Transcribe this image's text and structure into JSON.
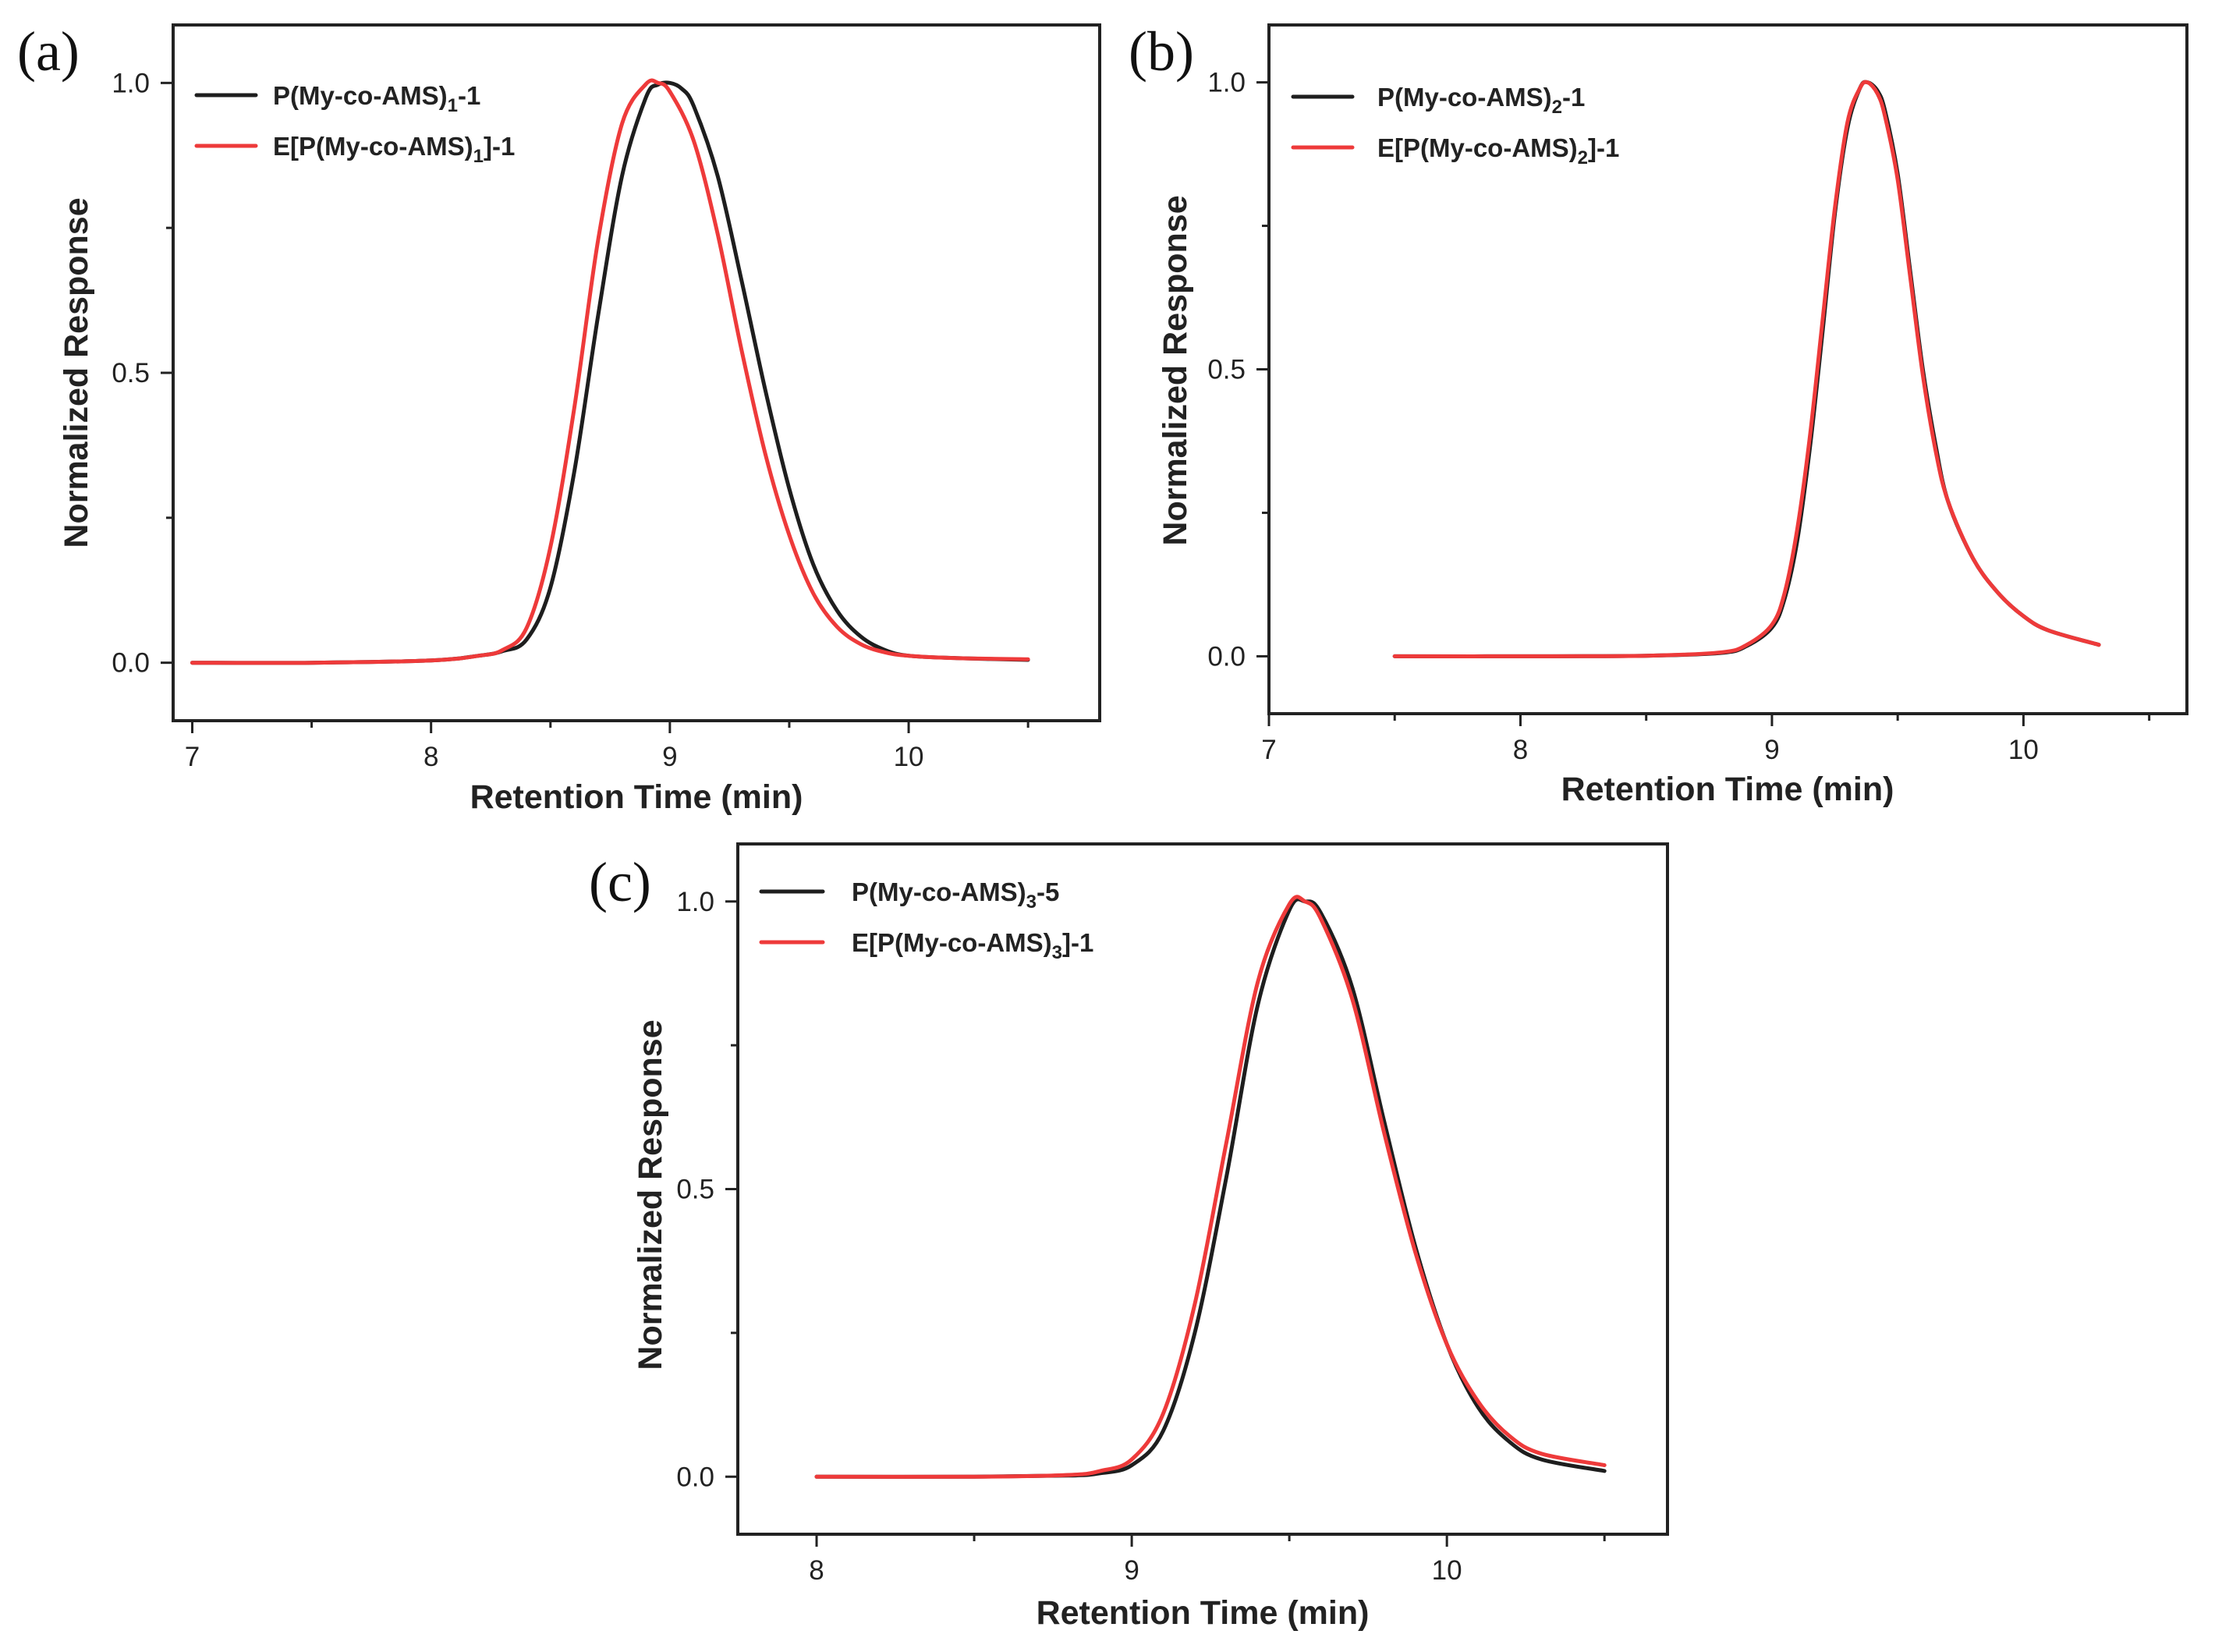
{
  "figure": {
    "panels": [
      "(a)",
      "(b)",
      "(c)"
    ]
  },
  "colors": {
    "series_black": "#1e1e1e",
    "series_red": "#ee3a3a",
    "axis": "#222222"
  },
  "chart_data": [
    {
      "id": "a",
      "type": "line",
      "panel_label": "(a)",
      "xlabel": "Retention Time (min)",
      "ylabel": "Normalized Response",
      "xlim": [
        6.92,
        10.8
      ],
      "ylim": [
        -0.1,
        1.1
      ],
      "xticks": [
        7,
        8,
        9,
        10
      ],
      "xtick_labels": [
        "7",
        "8",
        "9",
        "10"
      ],
      "xminor": [
        7.5,
        8.5,
        9.5,
        10.5
      ],
      "yticks": [
        0.0,
        0.5,
        1.0
      ],
      "ytick_labels": [
        "0.0",
        "0.5",
        "1.0"
      ],
      "yminor": [
        0.25,
        0.75
      ],
      "legend_position": "top-left",
      "series": [
        {
          "name_prefix": "P(My-co-AMS)",
          "name_sub": "1",
          "name_suffix": "-1",
          "color": "#1e1e1e",
          "x": [
            7.0,
            7.5,
            8.0,
            8.2,
            8.3,
            8.4,
            8.5,
            8.6,
            8.7,
            8.8,
            8.9,
            8.95,
            9.0,
            9.05,
            9.1,
            9.2,
            9.3,
            9.4,
            9.5,
            9.6,
            9.7,
            9.8,
            9.9,
            10.0,
            10.2,
            10.5
          ],
          "y": [
            0.0,
            0.0,
            0.004,
            0.012,
            0.02,
            0.04,
            0.13,
            0.33,
            0.6,
            0.84,
            0.975,
            0.997,
            1.0,
            0.99,
            0.96,
            0.84,
            0.66,
            0.47,
            0.3,
            0.17,
            0.09,
            0.045,
            0.022,
            0.012,
            0.008,
            0.005
          ]
        },
        {
          "name_prefix": "E[P(My-co-AMS)",
          "name_sub": "1",
          "name_suffix": "]-1",
          "color": "#ee3a3a",
          "x": [
            7.0,
            7.5,
            8.0,
            8.2,
            8.3,
            8.4,
            8.5,
            8.6,
            8.7,
            8.8,
            8.9,
            8.95,
            9.0,
            9.1,
            9.2,
            9.3,
            9.4,
            9.5,
            9.6,
            9.7,
            9.8,
            9.9,
            10.0,
            10.2,
            10.5
          ],
          "y": [
            0.0,
            0.0,
            0.004,
            0.012,
            0.022,
            0.06,
            0.2,
            0.44,
            0.73,
            0.93,
            0.998,
            1.0,
            0.985,
            0.9,
            0.74,
            0.54,
            0.36,
            0.22,
            0.12,
            0.062,
            0.032,
            0.018,
            0.012,
            0.008,
            0.006
          ]
        }
      ]
    },
    {
      "id": "b",
      "type": "line",
      "panel_label": "(b)",
      "xlabel": "Retention Time (min)",
      "ylabel": "Normalized Response",
      "xlim": [
        7.0,
        10.65
      ],
      "ylim": [
        -0.1,
        1.1
      ],
      "xticks": [
        7,
        8,
        9,
        10
      ],
      "xtick_labels": [
        "7",
        "8",
        "9",
        "10"
      ],
      "xminor": [
        7.5,
        8.5,
        9.5,
        10.5
      ],
      "yticks": [
        0.0,
        0.5,
        1.0
      ],
      "ytick_labels": [
        "0.0",
        "0.5",
        "1.0"
      ],
      "yminor": [
        0.25,
        0.75
      ],
      "legend_position": "top-left",
      "series": [
        {
          "name_prefix": "P(My-co-AMS)",
          "name_sub": "2",
          "name_suffix": "-1",
          "color": "#1e1e1e",
          "x": [
            7.5,
            8.0,
            8.5,
            8.8,
            8.9,
            9.0,
            9.05,
            9.1,
            9.15,
            9.2,
            9.25,
            9.3,
            9.35,
            9.38,
            9.42,
            9.45,
            9.5,
            9.55,
            9.6,
            9.65,
            9.7,
            9.8,
            9.9,
            10.0,
            10.1,
            10.3
          ],
          "y": [
            0.0,
            0.0,
            0.001,
            0.006,
            0.018,
            0.05,
            0.1,
            0.2,
            0.36,
            0.56,
            0.77,
            0.92,
            0.99,
            1.0,
            0.985,
            0.95,
            0.84,
            0.67,
            0.5,
            0.37,
            0.27,
            0.17,
            0.11,
            0.07,
            0.045,
            0.02
          ]
        },
        {
          "name_prefix": "E[P(My-co-AMS)",
          "name_sub": "2",
          "name_suffix": "]-1",
          "color": "#ee3a3a",
          "x": [
            7.5,
            8.0,
            8.5,
            8.8,
            8.9,
            9.0,
            9.05,
            9.1,
            9.15,
            9.2,
            9.25,
            9.3,
            9.35,
            9.38,
            9.42,
            9.45,
            9.5,
            9.55,
            9.6,
            9.65,
            9.7,
            9.8,
            9.9,
            10.0,
            10.1,
            10.3
          ],
          "y": [
            0.0,
            0.0,
            0.001,
            0.007,
            0.02,
            0.055,
            0.11,
            0.22,
            0.38,
            0.58,
            0.78,
            0.93,
            0.99,
            1.0,
            0.98,
            0.94,
            0.83,
            0.66,
            0.49,
            0.36,
            0.27,
            0.17,
            0.11,
            0.07,
            0.045,
            0.02
          ]
        }
      ]
    },
    {
      "id": "c",
      "type": "line",
      "panel_label": "(c)",
      "xlabel": "Retention Time (min)",
      "ylabel": "Normalized Response",
      "xlim": [
        7.75,
        10.7
      ],
      "ylim": [
        -0.1,
        1.1
      ],
      "xticks": [
        8,
        9,
        10
      ],
      "xtick_labels": [
        "8",
        "9",
        "10"
      ],
      "xminor": [
        8.5,
        9.5,
        10.5
      ],
      "yticks": [
        0.0,
        0.5,
        1.0
      ],
      "ytick_labels": [
        "0.0",
        "0.5",
        "1.0"
      ],
      "yminor": [
        0.25,
        0.75
      ],
      "legend_position": "top-left",
      "series": [
        {
          "name_prefix": "P(My-co-AMS)",
          "name_sub": "3",
          "name_suffix": "-5",
          "color": "#1e1e1e",
          "x": [
            8.0,
            8.5,
            8.8,
            8.9,
            9.0,
            9.1,
            9.2,
            9.3,
            9.4,
            9.5,
            9.55,
            9.6,
            9.7,
            9.8,
            9.9,
            10.0,
            10.1,
            10.2,
            10.3,
            10.5
          ],
          "y": [
            0.0,
            0.0,
            0.002,
            0.006,
            0.02,
            0.08,
            0.25,
            0.52,
            0.82,
            0.985,
            1.0,
            0.98,
            0.85,
            0.62,
            0.4,
            0.23,
            0.12,
            0.06,
            0.03,
            0.01
          ]
        },
        {
          "name_prefix": "E[P(My-co-AMS)",
          "name_sub": "3",
          "name_suffix": "]-1",
          "color": "#ee3a3a",
          "x": [
            8.0,
            8.5,
            8.8,
            8.9,
            9.0,
            9.1,
            9.2,
            9.3,
            9.4,
            9.5,
            9.55,
            9.6,
            9.7,
            9.8,
            9.9,
            10.0,
            10.1,
            10.2,
            10.3,
            10.5
          ],
          "y": [
            0.0,
            0.0,
            0.003,
            0.01,
            0.03,
            0.11,
            0.3,
            0.58,
            0.86,
            0.995,
            1.0,
            0.97,
            0.83,
            0.6,
            0.39,
            0.23,
            0.13,
            0.07,
            0.04,
            0.02
          ]
        }
      ]
    }
  ]
}
